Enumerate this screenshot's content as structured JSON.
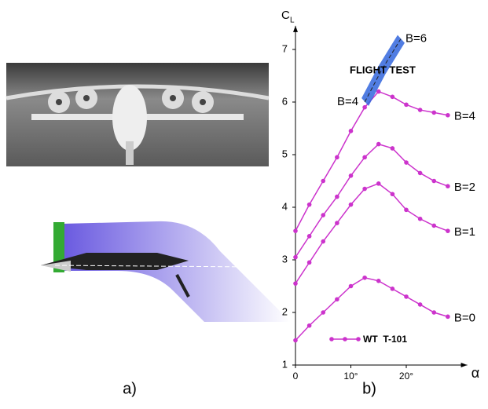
{
  "chart_data": {
    "type": "line",
    "x_label": "α",
    "y_label": "C",
    "y_label_sub": "L",
    "panel_a": "a)",
    "panel_b": "b)",
    "x": [
      0,
      2.5,
      5,
      7.5,
      10,
      12.5,
      15,
      17.5,
      20,
      22.5,
      25,
      27.5
    ],
    "series": [
      {
        "name": "B=0",
        "color": "#cc33cc",
        "values": [
          1.47,
          1.75,
          2.0,
          2.25,
          2.5,
          2.66,
          2.6,
          2.45,
          2.3,
          2.15,
          2.0,
          1.92
        ]
      },
      {
        "name": "B=1",
        "color": "#cc33cc",
        "values": [
          2.55,
          2.95,
          3.35,
          3.7,
          4.05,
          4.35,
          4.45,
          4.25,
          3.95,
          3.78,
          3.65,
          3.55
        ]
      },
      {
        "name": "B=2",
        "color": "#cc33cc",
        "values": [
          3.05,
          3.45,
          3.85,
          4.2,
          4.6,
          4.95,
          5.2,
          5.12,
          4.85,
          4.65,
          4.5,
          4.4
        ]
      },
      {
        "name": "B=4",
        "color": "#cc33cc",
        "values": [
          3.55,
          4.05,
          4.5,
          4.95,
          5.45,
          5.9,
          6.2,
          6.1,
          5.95,
          5.85,
          5.8,
          5.75
        ]
      }
    ],
    "flight_test": {
      "label": "FLIGHT TEST",
      "start_label": "B=4",
      "end_label": "B=6",
      "color": "#3366dd",
      "x": [
        12.5,
        15.5,
        19
      ],
      "values": [
        6.0,
        6.6,
        7.2
      ]
    },
    "legend": "WT  T-101",
    "xlim": [
      0,
      31
    ],
    "ylim": [
      1,
      7.45
    ],
    "xticks": [
      0,
      {
        "value": 10,
        "label": "10°"
      },
      {
        "value": 20,
        "label": "20°"
      }
    ],
    "yticks": [
      1,
      2,
      3,
      4,
      5,
      6,
      7
    ]
  }
}
